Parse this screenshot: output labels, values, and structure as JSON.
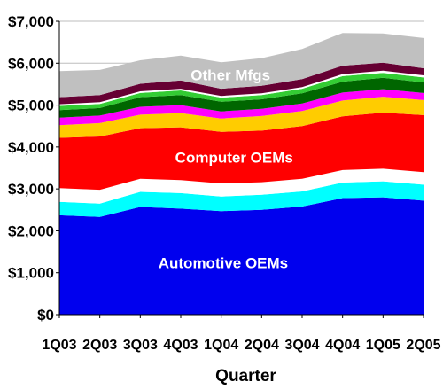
{
  "chart_data": {
    "type": "area",
    "stacked": true,
    "title": "",
    "xlabel": "Quarter",
    "ylabel": "",
    "ylim": [
      0,
      7000
    ],
    "y_ticks": [
      "$0",
      "$1,000",
      "$2,000",
      "$3,000",
      "$4,000",
      "$5,000",
      "$6,000",
      "$7,000"
    ],
    "y_tick_values": [
      0,
      1000,
      2000,
      3000,
      4000,
      5000,
      6000,
      7000
    ],
    "categories": [
      "1Q03",
      "2Q03",
      "3Q03",
      "4Q03",
      "1Q04",
      "2Q04",
      "3Q04",
      "4Q04",
      "1Q05",
      "2Q05"
    ],
    "grid": "horizontal",
    "legend": "none",
    "series": [
      {
        "name": "Automotive OEMs",
        "color": "#0000ee",
        "label_color": "#ffffff",
        "values": [
          2370,
          2330,
          2570,
          2530,
          2470,
          2500,
          2580,
          2780,
          2800,
          2720
        ]
      },
      {
        "name": "",
        "color": "#00ffff",
        "values": [
          320,
          320,
          360,
          370,
          350,
          360,
          360,
          370,
          380,
          380
        ]
      },
      {
        "name": "",
        "color": "#ffffff",
        "values": [
          330,
          330,
          310,
          310,
          310,
          300,
          300,
          300,
          300,
          300
        ]
      },
      {
        "name": "Computer OEMs",
        "color": "#ff0000",
        "label_color": "#ffffff",
        "values": [
          1200,
          1270,
          1210,
          1260,
          1230,
          1230,
          1260,
          1280,
          1340,
          1360
        ]
      },
      {
        "name": "",
        "color": "#ffcc00",
        "values": [
          300,
          320,
          320,
          340,
          320,
          350,
          360,
          380,
          380,
          360
        ]
      },
      {
        "name": "",
        "color": "#ff00ff",
        "values": [
          180,
          180,
          190,
          190,
          170,
          170,
          180,
          190,
          180,
          170
        ]
      },
      {
        "name": "",
        "color": "#006600",
        "values": [
          180,
          180,
          230,
          240,
          230,
          230,
          240,
          260,
          270,
          250
        ]
      },
      {
        "name": "",
        "color": "#33cc33",
        "values": [
          100,
          100,
          100,
          110,
          100,
          100,
          110,
          130,
          120,
          120
        ]
      },
      {
        "name": "",
        "color": "#ffffff",
        "values": [
          40,
          40,
          40,
          40,
          40,
          40,
          40,
          50,
          50,
          50
        ]
      },
      {
        "name": "",
        "color": "#660033",
        "values": [
          170,
          170,
          180,
          200,
          170,
          180,
          190,
          200,
          190,
          170
        ]
      },
      {
        "name": "Other Mfgs",
        "color": "#c0c0c0",
        "label_color": "#ffffff",
        "values": [
          620,
          600,
          560,
          590,
          630,
          660,
          720,
          780,
          700,
          720
        ]
      }
    ]
  }
}
